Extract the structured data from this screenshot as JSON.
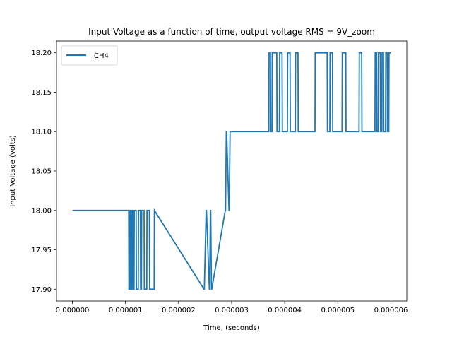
{
  "chart_data": {
    "type": "line",
    "title": "Input Voltage as a function of time, output voltage RMS = 9V_zoom",
    "xlabel": "Time, (seconds)",
    "ylabel": "Input Voltage (volts)",
    "xlim": [
      -3e-07,
      6.3e-06
    ],
    "ylim": [
      17.885,
      18.215
    ],
    "x_ticks": [
      0,
      1e-06,
      2e-06,
      3e-06,
      4e-06,
      5e-06,
      6e-06
    ],
    "x_tick_labels": [
      "0.000000",
      "0.000001",
      "0.000002",
      "0.000003",
      "0.000004",
      "0.000005",
      "0.000006"
    ],
    "y_ticks": [
      17.9,
      17.95,
      18.0,
      18.05,
      18.1,
      18.15,
      18.2
    ],
    "y_tick_labels": [
      "17.90",
      "17.95",
      "18.00",
      "18.05",
      "18.10",
      "18.15",
      "18.20"
    ],
    "grid": false,
    "legend_position": "top-left",
    "series": [
      {
        "name": "CH4",
        "color": "#1f77b4",
        "x": [
          0,
          1.06e-06,
          1.065e-06,
          1.08e-06,
          1.085e-06,
          1.1e-06,
          1.105e-06,
          1.12e-06,
          1.125e-06,
          1.14e-06,
          1.145e-06,
          1.16e-06,
          1.165e-06,
          1.2e-06,
          1.205e-06,
          1.24e-06,
          1.245e-06,
          1.28e-06,
          1.285e-06,
          1.3e-06,
          1.305e-06,
          1.35e-06,
          1.355e-06,
          1.4e-06,
          1.405e-06,
          1.45e-06,
          1.455e-06,
          1.54e-06,
          1.545e-06,
          2.48e-06,
          2.485e-06,
          2.52e-06,
          2.525e-06,
          2.58e-06,
          2.585e-06,
          2.6e-06,
          2.605e-06,
          2.62e-06,
          2.625e-06,
          2.88e-06,
          2.885e-06,
          2.9e-06,
          2.905e-06,
          2.95e-06,
          2.955e-06,
          2.97e-06,
          2.975e-06,
          3.7e-06,
          3.705e-06,
          3.73e-06,
          3.735e-06,
          3.76e-06,
          3.765e-06,
          3.85e-06,
          3.855e-06,
          3.9e-06,
          3.905e-06,
          3.95e-06,
          3.955e-06,
          4.05e-06,
          4.055e-06,
          4.1e-06,
          4.105e-06,
          4.2e-06,
          4.205e-06,
          4.25e-06,
          4.255e-06,
          4.57e-06,
          4.575e-06,
          4.8e-06,
          4.805e-06,
          4.85e-06,
          4.855e-06,
          4.9e-06,
          4.905e-06,
          5.08e-06,
          5.085e-06,
          5.15e-06,
          5.155e-06,
          5.4e-06,
          5.405e-06,
          5.45e-06,
          5.455e-06,
          5.7e-06,
          5.705e-06,
          5.73e-06,
          5.735e-06,
          5.76e-06,
          5.765e-06,
          5.8e-06,
          5.805e-06,
          5.83e-06,
          5.835e-06,
          5.86e-06,
          5.865e-06,
          5.9e-06,
          5.905e-06,
          5.93e-06,
          5.935e-06,
          5.96e-06,
          5.965e-06,
          6e-06
        ],
        "y": [
          18.0,
          18.0,
          17.9,
          17.9,
          18.0,
          18.0,
          17.9,
          17.9,
          18.0,
          18.0,
          17.9,
          17.9,
          18.0,
          18.0,
          17.9,
          17.9,
          18.0,
          18.0,
          17.9,
          17.9,
          18.0,
          18.0,
          17.9,
          17.9,
          18.0,
          18.0,
          17.9,
          17.9,
          18.0,
          17.9,
          17.9,
          18.0,
          18.0,
          17.9,
          17.9,
          18.0,
          18.0,
          17.9,
          17.9,
          18.0,
          18.0,
          18.1,
          18.1,
          18.0,
          18.0,
          18.1,
          18.1,
          18.1,
          18.2,
          18.2,
          18.1,
          18.1,
          18.2,
          18.2,
          18.1,
          18.1,
          18.2,
          18.2,
          18.1,
          18.1,
          18.2,
          18.2,
          18.1,
          18.1,
          18.2,
          18.2,
          18.1,
          18.1,
          18.2,
          18.2,
          18.1,
          18.1,
          18.2,
          18.2,
          18.1,
          18.1,
          18.2,
          18.2,
          18.1,
          18.1,
          18.2,
          18.2,
          18.1,
          18.1,
          18.2,
          18.2,
          18.1,
          18.1,
          18.2,
          18.2,
          18.1,
          18.1,
          18.2,
          18.2,
          18.1,
          18.1,
          18.2,
          18.2,
          18.1,
          18.1,
          18.2,
          18.2
        ]
      }
    ]
  }
}
